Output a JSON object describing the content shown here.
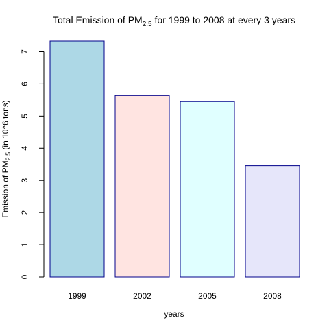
{
  "chart_data": {
    "type": "bar",
    "title": {
      "prefix": "Total Emission of PM",
      "subscript": "2.5",
      "suffix": " for 1999 to 2008 at every 3 years"
    },
    "xlabel": "years",
    "ylabel": {
      "prefix": "Emission of PM",
      "subscript": "2.5",
      "suffix": " (in 10^6 tons)"
    },
    "categories": [
      "1999",
      "2002",
      "2005",
      "2008"
    ],
    "values": [
      7.33,
      5.64,
      5.45,
      3.46
    ],
    "ylim": [
      0,
      7.33
    ],
    "yticks": [
      "0",
      "1",
      "2",
      "3",
      "4",
      "5",
      "6",
      "7"
    ],
    "grid": false,
    "bar_colors": [
      "#ADD8E6",
      "#FFE4E1",
      "#E0FFFF",
      "#E6E6FA"
    ],
    "bar_border_color": "#00008B"
  }
}
